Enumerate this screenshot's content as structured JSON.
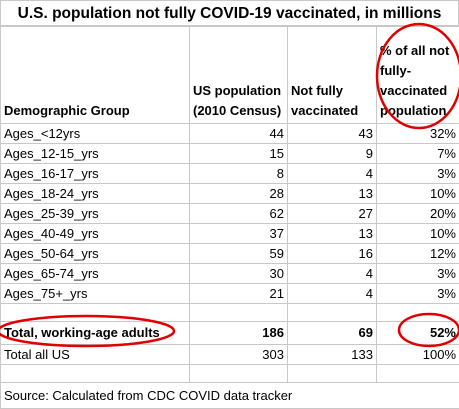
{
  "title": "U.S. population not fully COVID-19 vaccinated, in millions",
  "headers": {
    "group": "Demographic Group",
    "population": "US population (2010 Census)",
    "not_vaccinated": "Not fully vaccinated",
    "percent": "% of all not fully-vaccinated population"
  },
  "rows": [
    {
      "group": "Ages_<12yrs",
      "population": "44",
      "not_vaccinated": "43",
      "percent": "32%"
    },
    {
      "group": "Ages_12-15_yrs",
      "population": "15",
      "not_vaccinated": "9",
      "percent": "7%"
    },
    {
      "group": "Ages_16-17_yrs",
      "population": "8",
      "not_vaccinated": "4",
      "percent": "3%"
    },
    {
      "group": "Ages_18-24_yrs",
      "population": "28",
      "not_vaccinated": "13",
      "percent": "10%"
    },
    {
      "group": "Ages_25-39_yrs",
      "population": "62",
      "not_vaccinated": "27",
      "percent": "20%"
    },
    {
      "group": "Ages_40-49_yrs",
      "population": "37",
      "not_vaccinated": "13",
      "percent": "10%"
    },
    {
      "group": "Ages_50-64_yrs",
      "population": "59",
      "not_vaccinated": "16",
      "percent": "12%"
    },
    {
      "group": "Ages_65-74_yrs",
      "population": "30",
      "not_vaccinated": "4",
      "percent": "3%"
    },
    {
      "group": "Ages_75+_yrs",
      "population": "21",
      "not_vaccinated": "4",
      "percent": "3%"
    }
  ],
  "total_working": {
    "group": "Total, working-age adults",
    "population": "186",
    "not_vaccinated": "69",
    "percent": "52%"
  },
  "total_all": {
    "group": "Total all US",
    "population": "303",
    "not_vaccinated": "133",
    "percent": "100%"
  },
  "source": "Source:  Calculated from CDC COVID data tracker",
  "annotation_color": "#e00000"
}
